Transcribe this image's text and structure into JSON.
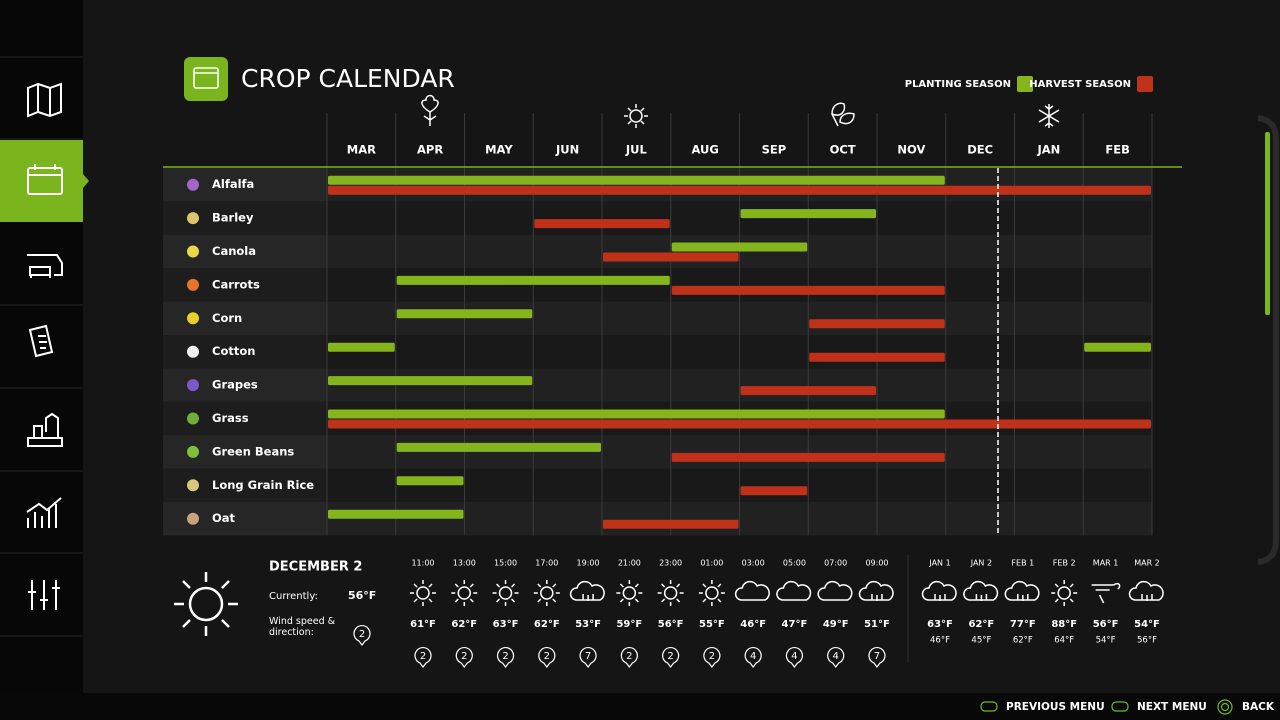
{
  "header": {
    "title": "CROP CALENDAR"
  },
  "legend": {
    "planting": "PLANTING SEASON",
    "harvest": "HARVEST SEASON"
  },
  "calendar": {
    "months": [
      "MAR",
      "APR",
      "MAY",
      "JUN",
      "JUL",
      "AUG",
      "SEP",
      "OCT",
      "NOV",
      "DEC",
      "JAN",
      "FEB"
    ],
    "crops": [
      {
        "name": "Alfalfa",
        "planting": [
          [
            0,
            8
          ]
        ],
        "harvest": [
          [
            0,
            11
          ]
        ]
      },
      {
        "name": "Barley",
        "planting": [
          [
            6,
            7
          ]
        ],
        "harvest": [
          [
            3,
            4
          ]
        ]
      },
      {
        "name": "Canola",
        "planting": [
          [
            5,
            6
          ]
        ],
        "harvest": [
          [
            4,
            5
          ]
        ]
      },
      {
        "name": "Carrots",
        "planting": [
          [
            1,
            4
          ]
        ],
        "harvest": [
          [
            5,
            8
          ]
        ]
      },
      {
        "name": "Corn",
        "planting": [
          [
            1,
            2
          ]
        ],
        "harvest": [
          [
            7,
            8
          ]
        ]
      },
      {
        "name": "Cotton",
        "planting": [
          [
            0,
            0
          ],
          [
            11,
            11
          ]
        ],
        "harvest": [
          [
            7,
            8
          ]
        ]
      },
      {
        "name": "Grapes",
        "planting": [
          [
            0,
            2
          ]
        ],
        "harvest": [
          [
            6,
            7
          ]
        ]
      },
      {
        "name": "Grass",
        "planting": [
          [
            0,
            8
          ]
        ],
        "harvest": [
          [
            0,
            11
          ]
        ]
      },
      {
        "name": "Green Beans",
        "planting": [
          [
            1,
            3
          ]
        ],
        "harvest": [
          [
            5,
            8
          ]
        ]
      },
      {
        "name": "Long Grain Rice",
        "planting": [
          [
            1,
            1
          ]
        ],
        "harvest": [
          [
            6,
            6
          ]
        ]
      },
      {
        "name": "Oat",
        "planting": [
          [
            0,
            1
          ]
        ],
        "harvest": [
          [
            4,
            5
          ]
        ]
      }
    ]
  },
  "weather": {
    "date": "DECEMBER 2",
    "current_label": "Currently:",
    "current_temp": "56°F",
    "wind_label": "Wind speed & direction:",
    "wind": 2,
    "hourly": [
      {
        "time": "11:00",
        "icon": "sun",
        "temp": "61°F",
        "wind": 2
      },
      {
        "time": "13:00",
        "icon": "sun",
        "temp": "62°F",
        "wind": 2
      },
      {
        "time": "15:00",
        "icon": "sun",
        "temp": "63°F",
        "wind": 2
      },
      {
        "time": "17:00",
        "icon": "sun",
        "temp": "62°F",
        "wind": 2
      },
      {
        "time": "19:00",
        "icon": "rain",
        "temp": "53°F",
        "wind": 7
      },
      {
        "time": "21:00",
        "icon": "sun",
        "temp": "59°F",
        "wind": 2
      },
      {
        "time": "23:00",
        "icon": "sun",
        "temp": "56°F",
        "wind": 2
      },
      {
        "time": "01:00",
        "icon": "sun",
        "temp": "55°F",
        "wind": 2
      },
      {
        "time": "03:00",
        "icon": "cloud",
        "temp": "46°F",
        "wind": 4
      },
      {
        "time": "05:00",
        "icon": "cloud",
        "temp": "47°F",
        "wind": 4
      },
      {
        "time": "07:00",
        "icon": "cloud",
        "temp": "49°F",
        "wind": 4
      },
      {
        "time": "09:00",
        "icon": "rain",
        "temp": "51°F",
        "wind": 7
      }
    ],
    "daily": [
      {
        "date": "JAN 1",
        "icon": "rain",
        "high": "63°F",
        "low": "46°F"
      },
      {
        "date": "JAN 2",
        "icon": "rain",
        "high": "62°F",
        "low": "45°F"
      },
      {
        "date": "FEB 1",
        "icon": "rain",
        "high": "77°F",
        "low": "62°F"
      },
      {
        "date": "FEB 2",
        "icon": "sun",
        "high": "88°F",
        "low": "64°F"
      },
      {
        "date": "MAR 1",
        "icon": "storm",
        "high": "56°F",
        "low": "54°F"
      },
      {
        "date": "MAR 2",
        "icon": "rain",
        "high": "54°F",
        "low": "56°F"
      }
    ]
  },
  "footer": {
    "previous": "PREVIOUS MENU",
    "next": "NEXT MENU",
    "back": "BACK"
  }
}
